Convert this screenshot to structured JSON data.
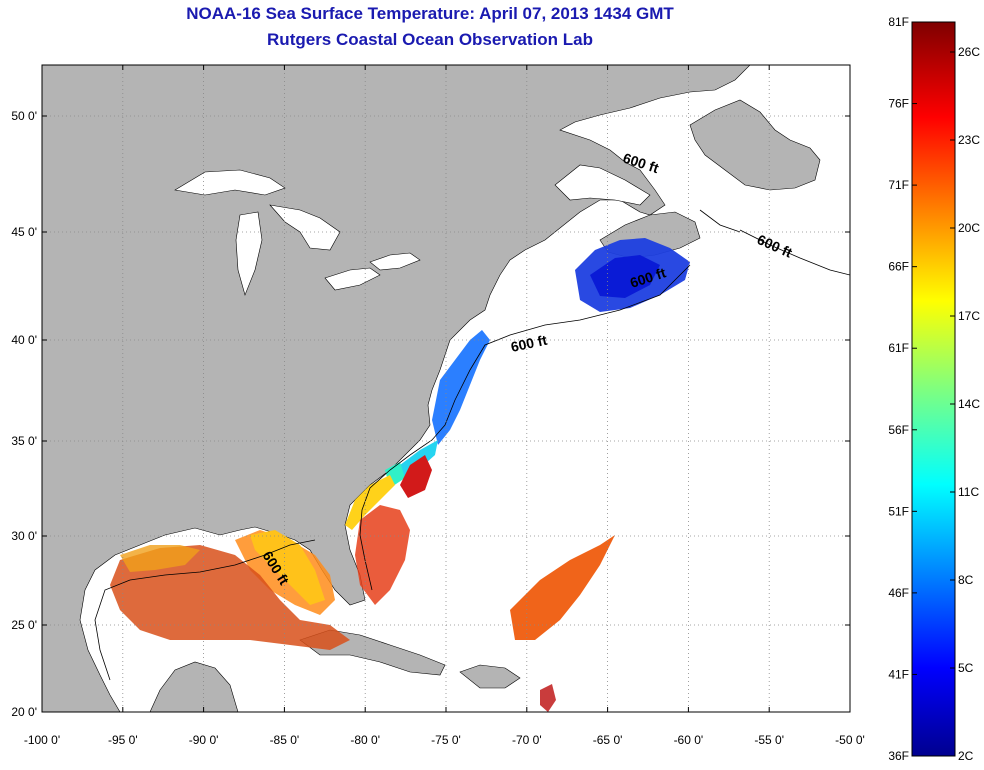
{
  "title": {
    "line1": "NOAA-16 Sea Surface Temperature:  April 07, 2013 1434 GMT",
    "line2": "Rutgers Coastal Ocean Observation Lab"
  },
  "axes": {
    "lon_labels": [
      "-100 0'",
      "-95 0'",
      "-90 0'",
      "-85 0'",
      "-80 0'",
      "-75 0'",
      "-70 0'",
      "-65 0'",
      "-60 0'",
      "-55 0'",
      "-50 0'"
    ],
    "lat_labels": [
      "20 0'",
      "25 0'",
      "30 0'",
      "35 0'",
      "40 0'",
      "45 0'",
      "50 0'"
    ]
  },
  "contour_labels": [
    "600 ft",
    "600 ft",
    "600 ft",
    "600 ft",
    "600 ft"
  ],
  "colorbar": {
    "fahrenheit": [
      "81F",
      "76F",
      "71F",
      "66F",
      "61F",
      "56F",
      "51F",
      "46F",
      "41F",
      "36F"
    ],
    "celsius": [
      "26C",
      "23C",
      "20C",
      "17C",
      "14C",
      "11C",
      "8C",
      "5C",
      "2C"
    ]
  },
  "colors": {
    "land": "#b4b4b4",
    "water": "#ffffff",
    "title": "#1a1ab0",
    "grid": "#888888"
  }
}
